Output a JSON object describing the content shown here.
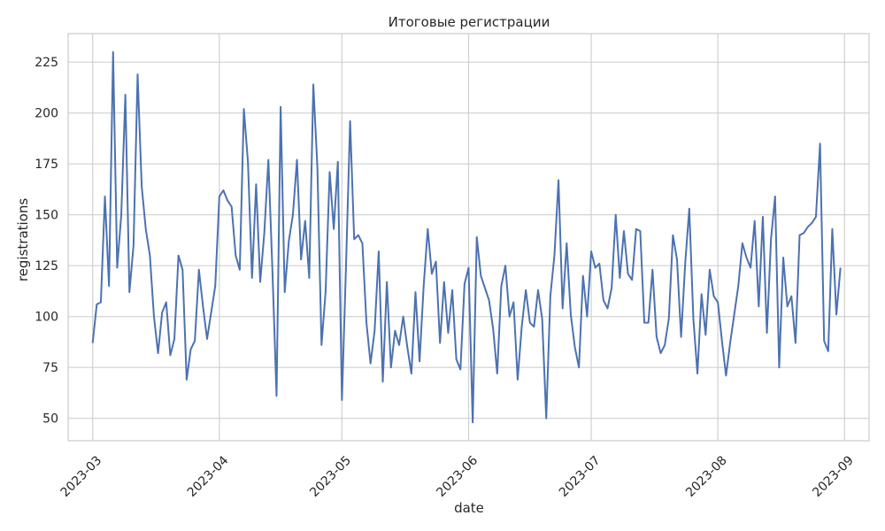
{
  "chart_data": {
    "type": "line",
    "title": "Итоговые регистрации",
    "xlabel": "date",
    "ylabel": "registrations",
    "x_axis_type": "date",
    "xlim": [
      "2023-02-23",
      "2023-09-07"
    ],
    "ylim": [
      39,
      239
    ],
    "grid": true,
    "x_ticks": [
      "2023-03-01",
      "2023-04-01",
      "2023-05-01",
      "2023-06-01",
      "2023-07-01",
      "2023-08-01",
      "2023-09-01"
    ],
    "x_tick_labels": [
      "2023-03",
      "2023-04",
      "2023-05",
      "2023-06",
      "2023-07",
      "2023-08",
      "2023-09"
    ],
    "y_ticks": [
      50,
      75,
      100,
      125,
      150,
      175,
      200,
      225
    ],
    "y_tick_labels": [
      "50",
      "75",
      "100",
      "125",
      "150",
      "175",
      "200",
      "225"
    ],
    "color": "#4c72b0",
    "series": [
      {
        "x": [
          "2023-03-01",
          "2023-03-02",
          "2023-03-03",
          "2023-03-04",
          "2023-03-05",
          "2023-03-06",
          "2023-03-07",
          "2023-03-08",
          "2023-03-09",
          "2023-03-10",
          "2023-03-11",
          "2023-03-12",
          "2023-03-13",
          "2023-03-14",
          "2023-03-15",
          "2023-03-16",
          "2023-03-17",
          "2023-03-18",
          "2023-03-19",
          "2023-03-20",
          "2023-03-21",
          "2023-03-22",
          "2023-03-23",
          "2023-03-24",
          "2023-03-25",
          "2023-03-26",
          "2023-03-27",
          "2023-03-28",
          "2023-03-29",
          "2023-03-30",
          "2023-03-31",
          "2023-04-01",
          "2023-04-02",
          "2023-04-03",
          "2023-04-04",
          "2023-04-05",
          "2023-04-06",
          "2023-04-07",
          "2023-04-08",
          "2023-04-09",
          "2023-04-10",
          "2023-04-11",
          "2023-04-12",
          "2023-04-13",
          "2023-04-14",
          "2023-04-15",
          "2023-04-16",
          "2023-04-17",
          "2023-04-18",
          "2023-04-19",
          "2023-04-20",
          "2023-04-21",
          "2023-04-22",
          "2023-04-23",
          "2023-04-24",
          "2023-04-25",
          "2023-04-26",
          "2023-04-27",
          "2023-04-28",
          "2023-04-29",
          "2023-04-30",
          "2023-05-01",
          "2023-05-02",
          "2023-05-03",
          "2023-05-04",
          "2023-05-05",
          "2023-05-06",
          "2023-05-07",
          "2023-05-08",
          "2023-05-09",
          "2023-05-10",
          "2023-05-11",
          "2023-05-12",
          "2023-05-13",
          "2023-05-14",
          "2023-05-15",
          "2023-05-16",
          "2023-05-17",
          "2023-05-18",
          "2023-05-19",
          "2023-05-20",
          "2023-05-21",
          "2023-05-22",
          "2023-05-23",
          "2023-05-24",
          "2023-05-25",
          "2023-05-26",
          "2023-05-27",
          "2023-05-28",
          "2023-05-29",
          "2023-05-30",
          "2023-05-31",
          "2023-06-01",
          "2023-06-02",
          "2023-06-03",
          "2023-06-04",
          "2023-06-05",
          "2023-06-06",
          "2023-06-07",
          "2023-06-08",
          "2023-06-09",
          "2023-06-10",
          "2023-06-11",
          "2023-06-12",
          "2023-06-13",
          "2023-06-14",
          "2023-06-15",
          "2023-06-16",
          "2023-06-17",
          "2023-06-18",
          "2023-06-19",
          "2023-06-20",
          "2023-06-21",
          "2023-06-22",
          "2023-06-23",
          "2023-06-24",
          "2023-06-25",
          "2023-06-26",
          "2023-06-27",
          "2023-06-28",
          "2023-06-29",
          "2023-06-30",
          "2023-07-01",
          "2023-07-02",
          "2023-07-03",
          "2023-07-04",
          "2023-07-05",
          "2023-07-06",
          "2023-07-07",
          "2023-07-08",
          "2023-07-09",
          "2023-07-10",
          "2023-07-11",
          "2023-07-12",
          "2023-07-13",
          "2023-07-14",
          "2023-07-15",
          "2023-07-16",
          "2023-07-17",
          "2023-07-18",
          "2023-07-19",
          "2023-07-20",
          "2023-07-21",
          "2023-07-22",
          "2023-07-23",
          "2023-07-24",
          "2023-07-25",
          "2023-07-26",
          "2023-07-27",
          "2023-07-28",
          "2023-07-29",
          "2023-07-30",
          "2023-07-31",
          "2023-08-01",
          "2023-08-02",
          "2023-08-03",
          "2023-08-04",
          "2023-08-05",
          "2023-08-06",
          "2023-08-07",
          "2023-08-08",
          "2023-08-09",
          "2023-08-10",
          "2023-08-11",
          "2023-08-12",
          "2023-08-13",
          "2023-08-14",
          "2023-08-15",
          "2023-08-16",
          "2023-08-17",
          "2023-08-18",
          "2023-08-19",
          "2023-08-20",
          "2023-08-21",
          "2023-08-22",
          "2023-08-23",
          "2023-08-24",
          "2023-08-25",
          "2023-08-26",
          "2023-08-27",
          "2023-08-28",
          "2023-08-29",
          "2023-08-30",
          "2023-08-31"
        ],
        "y": [
          87,
          106,
          107,
          159,
          115,
          230,
          124,
          150,
          209,
          112,
          135,
          219,
          164,
          143,
          130,
          100,
          82,
          102,
          107,
          81,
          89,
          130,
          123,
          69,
          84,
          88,
          123,
          105,
          89,
          102,
          115,
          159,
          162,
          157,
          154,
          130,
          123,
          202,
          176,
          119,
          165,
          117,
          141,
          177,
          122,
          61,
          203,
          112,
          137,
          150,
          177,
          128,
          147,
          119,
          214,
          173,
          86,
          112,
          171,
          143,
          176,
          59,
          125,
          196,
          138,
          140,
          136,
          97,
          77,
          93,
          132,
          68,
          117,
          75,
          93,
          86,
          100,
          85,
          72,
          112,
          78,
          115,
          143,
          121,
          127,
          87,
          117,
          92,
          113,
          79,
          74,
          116,
          124,
          48,
          139,
          120,
          114,
          108,
          94,
          72,
          115,
          125,
          100,
          107,
          69,
          95,
          113,
          97,
          95,
          113,
          99,
          50,
          110,
          130,
          167,
          104,
          136,
          101,
          85,
          75,
          120,
          100,
          132,
          124,
          126,
          108,
          104,
          114,
          150,
          119,
          142,
          121,
          118,
          143,
          142,
          97,
          97,
          123,
          90,
          82,
          86,
          99,
          140,
          128,
          90,
          126,
          153,
          99,
          72,
          111,
          91,
          123,
          110,
          107,
          88,
          71,
          87,
          101,
          115,
          136,
          129,
          124,
          147,
          105,
          149,
          92,
          138,
          159,
          75,
          129,
          105,
          110,
          87,
          140,
          141,
          144,
          146,
          149,
          185,
          88,
          83,
          143,
          101,
          124
        ]
      }
    ]
  }
}
